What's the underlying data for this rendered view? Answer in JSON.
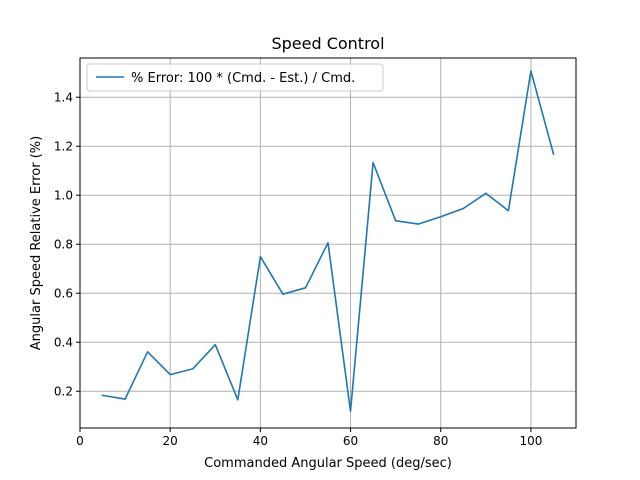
{
  "chart_data": {
    "type": "line",
    "title": "Speed Control",
    "xlabel": "Commanded Angular Speed (deg/sec)",
    "ylabel": "Angular Speed Relative Error (%)",
    "xlim": [
      0,
      110
    ],
    "ylim": [
      0.05,
      1.56
    ],
    "xticks": [
      0,
      20,
      40,
      60,
      80,
      100
    ],
    "yticks": [
      0.2,
      0.4,
      0.6,
      0.8,
      1.0,
      1.2,
      1.4
    ],
    "ytick_labels": [
      "0.2",
      "0.4",
      "0.6",
      "0.8",
      "1.0",
      "1.2",
      "1.4"
    ],
    "grid": true,
    "legend_position": "upper-left",
    "series": [
      {
        "name": "% Error: 100 * (Cmd. - Est.) / Cmd.",
        "color": "#1f77b4",
        "x": [
          5,
          10,
          15,
          20,
          25,
          30,
          35,
          40,
          45,
          50,
          55,
          60,
          65,
          70,
          75,
          80,
          85,
          90,
          95,
          100,
          105
        ],
        "y": [
          0.183,
          0.168,
          0.361,
          0.268,
          0.291,
          0.39,
          0.165,
          0.749,
          0.596,
          0.622,
          0.806,
          0.118,
          1.133,
          0.896,
          0.882,
          0.912,
          0.946,
          1.008,
          0.937,
          1.507,
          1.168
        ]
      }
    ]
  }
}
